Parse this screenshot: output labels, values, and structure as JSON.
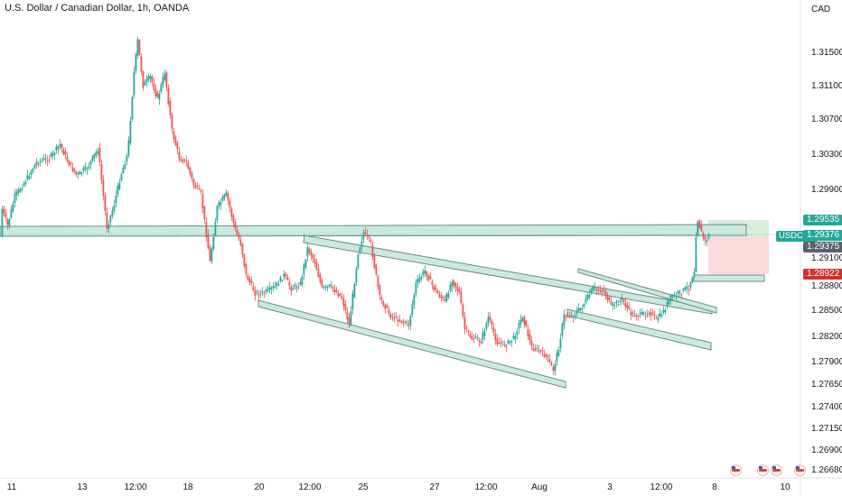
{
  "header": {
    "title": "U.S. Dollar / Canadian Dollar, 1h, OANDA"
  },
  "price_scale": {
    "currency": "CAD",
    "ticks": [
      "1.31500",
      "1.31100",
      "1.30700",
      "1.30300",
      "1.29900",
      "1.29100",
      "1.28800",
      "1.28500",
      "1.28200",
      "1.27900",
      "1.27650",
      "1.27400",
      "1.27150",
      "1.26900",
      "1.26680"
    ]
  },
  "time_axis": {
    "labels": [
      "11",
      "13",
      "12:00",
      "18",
      "20",
      "12:00",
      "25",
      "27",
      "12:00",
      "Aug",
      "3",
      "12:00",
      "8",
      "10"
    ]
  },
  "badges": {
    "target": "1.29535",
    "symbol": "USDCAD",
    "last_price": "1.29376",
    "entry": "1.29375",
    "stop": "1.28922"
  },
  "events": {
    "flag_icon": "us-flag-icon",
    "count": 4
  },
  "colors": {
    "up": "#26a69a",
    "down": "#ef5350",
    "zone_fill": "#c8eadf",
    "zone_stroke": "#6f8a84",
    "profit_zone": "#d5eedd",
    "loss_zone": "#fadadd",
    "stop_badge": "#d32f2f"
  },
  "chart_data": {
    "type": "candlestick",
    "title": "U.S. Dollar / Canadian Dollar, 1h, OANDA",
    "x_ticks": [
      "11",
      "13",
      "12:00",
      "18",
      "20",
      "12:00",
      "25",
      "27",
      "12:00",
      "Aug",
      "3",
      "12:00",
      "8",
      "10"
    ],
    "y_ticks": [
      1.315,
      1.311,
      1.307,
      1.303,
      1.299,
      1.291,
      1.288,
      1.285,
      1.282,
      1.279,
      1.2765,
      1.274,
      1.2715,
      1.269,
      1.2668
    ],
    "last_price": 1.29376,
    "support_resistance_zone": [
      1.2939,
      1.2952
    ],
    "retest_zone": [
      1.2886,
      1.2893
    ],
    "position": {
      "entry": 1.29375,
      "target": 1.29535,
      "stop": 1.28922
    }
  }
}
